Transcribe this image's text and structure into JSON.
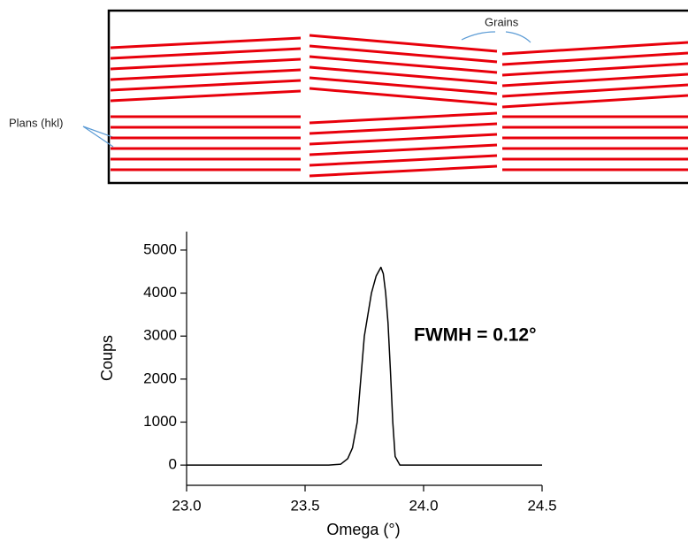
{
  "diagram": {
    "grains_label": "Grains",
    "planes_label": "Plans (hkl)"
  },
  "chart_data": {
    "type": "line",
    "x_label": "Omega (°)",
    "y_label": "Coups",
    "annotation": "FWMH = 0.12°",
    "xlim": [
      23.0,
      24.5
    ],
    "ylim": [
      -470,
      5430
    ],
    "xticks": [
      {
        "value": 23,
        "label": "23.0"
      },
      23.5,
      {
        "value": 24,
        "label": "24.0"
      },
      24.5
    ],
    "yticks": [
      0,
      1000,
      2000,
      3000,
      4000,
      5000
    ],
    "series": [
      {
        "color": "#000000",
        "x": [
          23.0,
          23.2,
          23.4,
          23.6,
          23.65,
          23.68,
          23.7,
          23.72,
          23.75,
          23.78,
          23.8,
          23.81,
          23.82,
          23.83,
          23.84,
          23.85,
          23.86,
          23.87,
          23.88,
          23.9,
          24.1,
          24.3,
          24.5
        ],
        "values": [
          0,
          0,
          0,
          0,
          20,
          150,
          400,
          1000,
          3000,
          4000,
          4400,
          4500,
          4600,
          4450,
          4000,
          3300,
          2200,
          1000,
          200,
          0,
          0,
          0,
          0
        ]
      }
    ]
  }
}
